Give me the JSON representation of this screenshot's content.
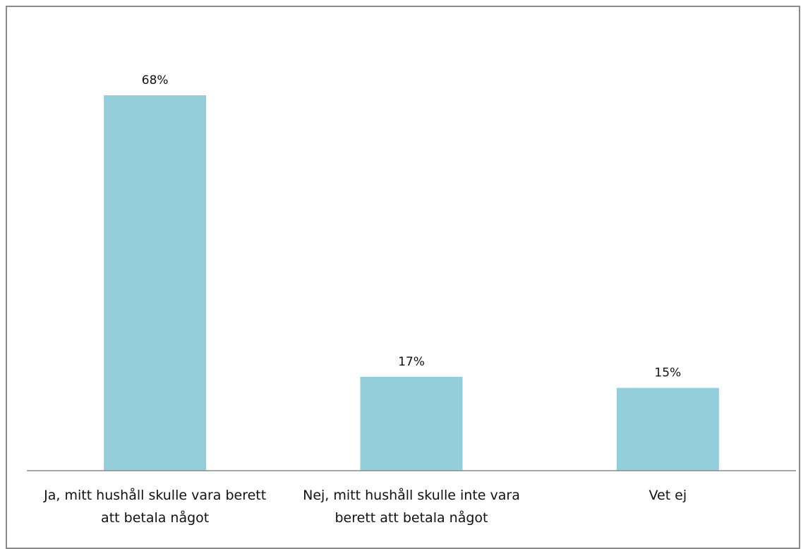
{
  "chart_data": {
    "type": "bar",
    "categories": [
      [
        "Ja, mitt hushåll skulle vara berett",
        "att betala något"
      ],
      [
        "Nej, mitt hushåll skulle inte vara",
        "berett att betala något"
      ],
      [
        "Vet ej"
      ]
    ],
    "values": [
      68,
      17,
      15
    ],
    "data_labels": [
      "68%",
      "17%",
      "15%"
    ],
    "title": "",
    "xlabel": "",
    "ylabel": "",
    "ylim": [
      0,
      68
    ],
    "grid": false,
    "legend": "none",
    "colors": {
      "bar": "#94CEDB",
      "axis": "#8a8a8a",
      "frame": "#8a8a8a",
      "text": "#111111"
    }
  }
}
